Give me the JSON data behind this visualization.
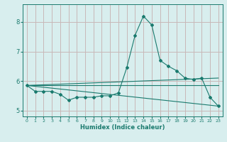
{
  "xlabel": "Humidex (Indice chaleur)",
  "ylabel": "",
  "background_color": "#d8eeee",
  "grid_color": "#c8b8b8",
  "line_color": "#1a7a6e",
  "xlim": [
    -0.5,
    23.5
  ],
  "ylim": [
    4.8,
    8.6
  ],
  "yticks": [
    5,
    6,
    7,
    8
  ],
  "xticks": [
    0,
    1,
    2,
    3,
    4,
    5,
    6,
    7,
    8,
    9,
    10,
    11,
    12,
    13,
    14,
    15,
    16,
    17,
    18,
    19,
    20,
    21,
    22,
    23
  ],
  "line1_x": [
    0,
    1,
    2,
    3,
    4,
    5,
    6,
    7,
    8,
    9,
    10,
    11,
    12,
    13,
    14,
    15,
    16,
    17,
    18,
    19,
    20,
    21,
    22,
    23
  ],
  "line1_y": [
    5.85,
    5.65,
    5.65,
    5.65,
    5.55,
    5.35,
    5.45,
    5.45,
    5.45,
    5.5,
    5.5,
    5.6,
    6.45,
    7.55,
    8.2,
    7.9,
    6.7,
    6.5,
    6.35,
    6.1,
    6.05,
    6.1,
    5.45,
    5.15
  ],
  "line2_x": [
    0,
    23
  ],
  "line2_y": [
    5.85,
    6.1
  ],
  "line3_x": [
    0,
    23
  ],
  "line3_y": [
    5.85,
    5.15
  ],
  "line4_x": [
    0,
    23
  ],
  "line4_y": [
    5.85,
    5.85
  ],
  "xlabel_fontsize": 6.0,
  "xtick_fontsize": 4.5,
  "ytick_fontsize": 6.0
}
